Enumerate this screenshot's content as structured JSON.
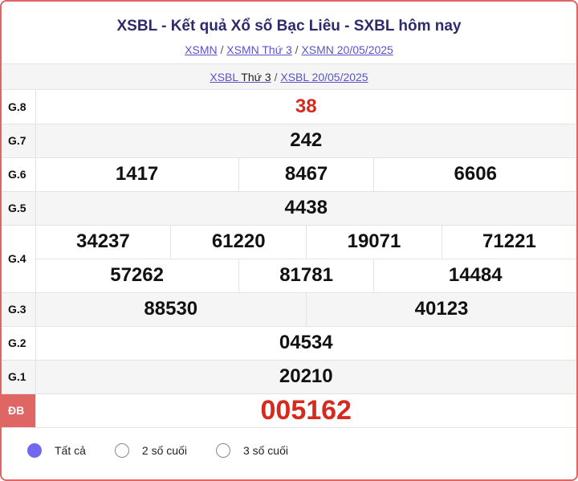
{
  "title": "XSBL - Kết quả Xổ số Bạc Liêu - SXBL hôm nay",
  "breadcrumb1": [
    "XSMN",
    "XSMN Thứ 3",
    "XSMN 20/05/2025"
  ],
  "breadcrumb2": {
    "link1": "XSBL",
    "link1_rest": "Thứ 3",
    "link2": "XSBL 20/05/2025"
  },
  "separator": "/",
  "prizes": {
    "g8": {
      "label": "G.8",
      "values": [
        "38"
      ]
    },
    "g7": {
      "label": "G.7",
      "values": [
        "242"
      ]
    },
    "g6": {
      "label": "G.6",
      "values": [
        "1417",
        "8467",
        "6606"
      ]
    },
    "g5": {
      "label": "G.5",
      "values": [
        "4438"
      ]
    },
    "g4": {
      "label": "G.4",
      "values": [
        "34237",
        "61220",
        "19071",
        "71221",
        "57262",
        "81781",
        "14484"
      ]
    },
    "g3": {
      "label": "G.3",
      "values": [
        "88530",
        "40123"
      ]
    },
    "g2": {
      "label": "G.2",
      "values": [
        "04534"
      ]
    },
    "g1": {
      "label": "G.1",
      "values": [
        "20210"
      ]
    },
    "db": {
      "label": "ĐB",
      "values": [
        "005162"
      ]
    }
  },
  "filters": [
    {
      "label": "Tất cả",
      "selected": true
    },
    {
      "label": "2 số cuối",
      "selected": false
    },
    {
      "label": "3 số cuối",
      "selected": false
    }
  ],
  "colors": {
    "accent": "#e06666",
    "jackpot": "#d62a1f",
    "radio": "#7269ef"
  }
}
